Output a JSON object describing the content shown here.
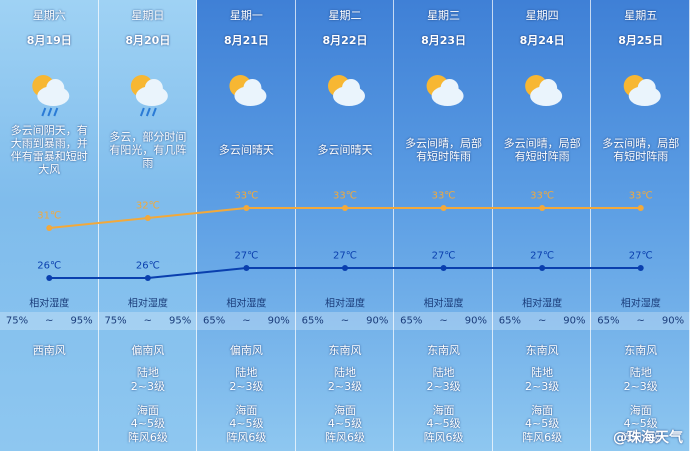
{
  "columns": [
    {
      "weekday": "星期六",
      "date": "8月19日",
      "weather": "多云间阴天，有大雨到暴雨，并伴有雷暴和短时大风",
      "humidity_label": "相对湿度",
      "humidity": [
        "75%",
        "~",
        "95%"
      ],
      "wind_direction": "西南风"
    },
    {
      "weekday": "星期日",
      "date": "8月20日",
      "weather": "多云，部分时间有阳光，有几阵雨",
      "humidity_label": "相对湿度",
      "humidity": [
        "75%",
        "~",
        "95%"
      ],
      "wind_direction": "偏南风",
      "land_label": "陆地",
      "land_wind": "2~3级",
      "sea_label": "海面",
      "sea_wind": "4~5级",
      "gust": "阵风6级"
    },
    {
      "weekday": "星期一",
      "date": "8月21日",
      "weather": "多云间晴天",
      "humidity_label": "相对湿度",
      "humidity": [
        "65%",
        "~",
        "90%"
      ],
      "wind_direction": "偏南风",
      "land_label": "陆地",
      "land_wind": "2~3级",
      "sea_label": "海面",
      "sea_wind": "4~5级",
      "gust": "阵风6级"
    },
    {
      "weekday": "星期二",
      "date": "8月22日",
      "weather": "多云间晴天",
      "humidity_label": "相对湿度",
      "humidity": [
        "65%",
        "~",
        "90%"
      ],
      "wind_direction": "东南风",
      "land_label": "陆地",
      "land_wind": "2~3级",
      "sea_label": "海面",
      "sea_wind": "4~5级",
      "gust": "阵风6级"
    },
    {
      "weekday": "星期三",
      "date": "8月23日",
      "weather": "多云间晴，局部有短时阵雨",
      "humidity_label": "相对湿度",
      "humidity": [
        "65%",
        "~",
        "90%"
      ],
      "wind_direction": "东南风",
      "land_label": "陆地",
      "land_wind": "2~3级",
      "sea_label": "海面",
      "sea_wind": "4~5级",
      "gust": "阵风6级"
    },
    {
      "weekday": "星期四",
      "date": "8月24日",
      "weather": "多云间晴，局部有短时阵雨",
      "humidity_label": "相对湿度",
      "humidity": [
        "65%",
        "~",
        "90%"
      ],
      "wind_direction": "东南风",
      "land_label": "陆地",
      "land_wind": "2~3级",
      "sea_label": "海面",
      "sea_wind": "4~5级",
      "gust": "阵风6级"
    },
    {
      "weekday": "星期五",
      "date": "8月25日",
      "weather": "多云间晴，局部有短时阵雨",
      "humidity_label": "相对湿度",
      "humidity": [
        "65%",
        "~",
        "90%"
      ],
      "wind_direction": "东南风",
      "land_label": "陆地",
      "land_wind": "2~3级",
      "sea_label": "海面",
      "sea_wind": "4~5级",
      "gust": "阵风6级"
    }
  ],
  "chart_data": {
    "type": "line",
    "series": [
      {
        "color": "#f2a93b",
        "values": [
          31,
          32,
          33,
          33,
          33,
          33,
          33
        ],
        "value_labels": [
          "31℃",
          "32℃",
          "33℃",
          "33℃",
          "33℃",
          "33℃",
          "33℃"
        ]
      },
      {
        "color": "#0a3fae",
        "values": [
          26,
          26,
          27,
          27,
          27,
          27,
          27
        ],
        "value_labels": [
          "26℃",
          "26℃",
          "27℃",
          "27℃",
          "27℃",
          "27℃",
          "27℃"
        ]
      }
    ]
  },
  "watermark": "@珠海天气"
}
